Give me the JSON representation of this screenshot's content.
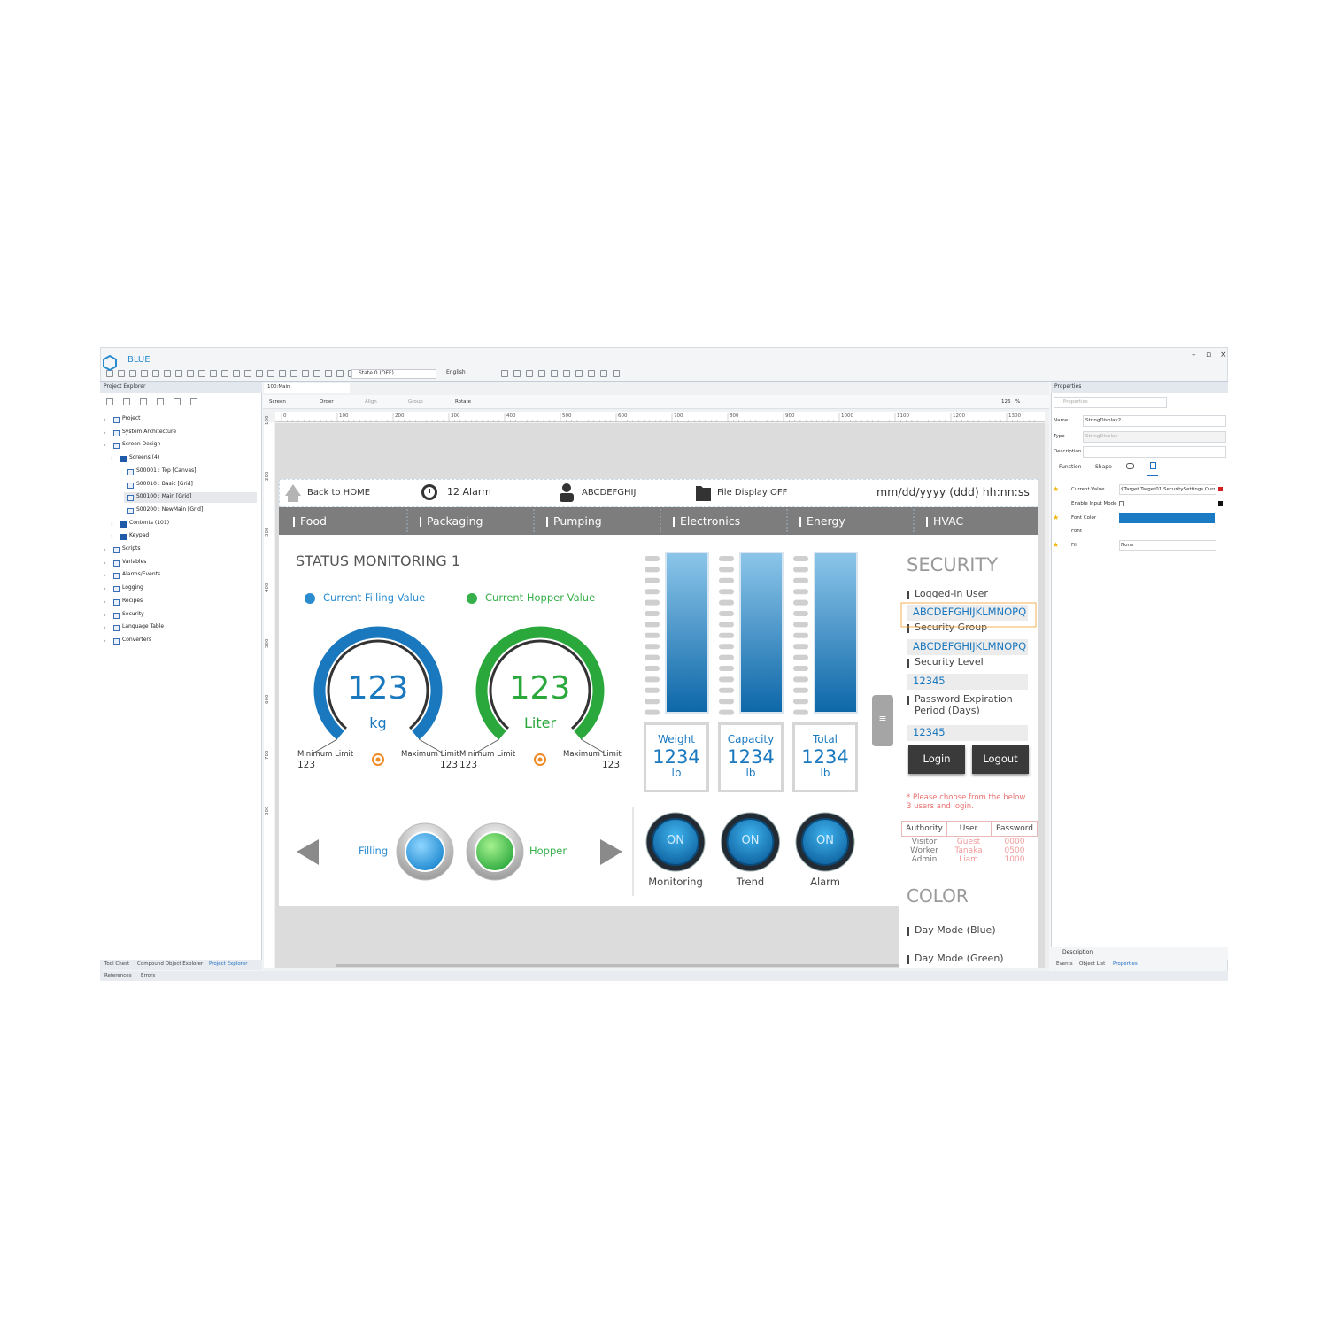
{
  "app": {
    "title": "BLUE",
    "state": "State 0 (OFF)",
    "language": "English"
  },
  "project_explorer": {
    "title": "Project Explorer",
    "tree": [
      "Project",
      "System Architecture",
      "Screen Design",
      "Screens (4)",
      "S00001 : Top [Canvas]",
      "S00010 : Basic [Grid]",
      "S00100 : Main [Grid]",
      "S00200 : NewMain [Grid]",
      "Contents (101)",
      "Keypad",
      "Scripts",
      "Variables",
      "Alarms/Events",
      "Logging",
      "Recipes",
      "Security",
      "Language Table",
      "Converters"
    ],
    "tabs": [
      "Tool Chest",
      "Compound Object Explorer",
      "Project Explorer"
    ],
    "bottom_tabs": [
      "References",
      "Errors"
    ]
  },
  "editor": {
    "tab": "100:Main",
    "toolbar": [
      "Screen",
      "Order",
      "Align",
      "Group",
      "Rotate"
    ],
    "zoom": "126",
    "zoom_unit": "%",
    "ruler_x": [
      0,
      100,
      200,
      300,
      400,
      500,
      600,
      700,
      800,
      900,
      1000,
      1100,
      1200,
      1300
    ],
    "ruler_y": [
      100,
      200,
      300,
      400,
      500,
      600,
      700,
      800
    ]
  },
  "hmi": {
    "header": {
      "home": "Back to HOME",
      "alarm": "12 Alarm",
      "user": "ABCDEFGHIJ",
      "file": "File Display OFF",
      "datetime": "mm/dd/yyyy (ddd) hh:nn:ss"
    },
    "nav": [
      "Food",
      "Packaging",
      "Pumping",
      "Electronics",
      "Energy",
      "HVAC"
    ],
    "status": {
      "title": "STATUS MONITORING 1",
      "legend": [
        {
          "name": "Current Filling Value",
          "color": "#2a8ccf"
        },
        {
          "name": "Current Hopper Value",
          "color": "#36b04a"
        }
      ],
      "gauges": [
        {
          "value": "123",
          "unit": "kg",
          "min_label": "Minimum Limit",
          "min": "123",
          "max_label": "Maximum Limit",
          "max": "123",
          "color": "#1a78bf"
        },
        {
          "value": "123",
          "unit": "Liter",
          "min_label": "Minimum Limit",
          "min": "123",
          "max_label": "Maximum Limit",
          "max": "123",
          "color": "#2aa83c"
        }
      ]
    },
    "meters": [
      {
        "label": "Weight",
        "value": "1234",
        "unit": "lb"
      },
      {
        "label": "Capacity",
        "value": "1234",
        "unit": "lb"
      },
      {
        "label": "Total",
        "value": "1234",
        "unit": "lb"
      }
    ],
    "controls": {
      "filling": "Filling",
      "hopper": "Hopper"
    },
    "buttons": [
      {
        "state": "ON",
        "label": "Monitoring"
      },
      {
        "state": "ON",
        "label": "Trend"
      },
      {
        "state": "ON",
        "label": "Alarm"
      }
    ],
    "security": {
      "title": "SECURITY",
      "fields": [
        {
          "label": "Logged-in User",
          "value": "ABCDEFGHIJKLMNOPQ"
        },
        {
          "label": "Security Group",
          "value": "ABCDEFGHIJKLMNOPQ"
        },
        {
          "label": "Security Level",
          "value": "12345"
        },
        {
          "label": "Password Expiration\nPeriod (Days)",
          "value": "12345"
        }
      ],
      "login": "Login",
      "logout": "Logout",
      "note": "* Please choose from the below 3 users and login.",
      "table": {
        "header": [
          "Authority",
          "User",
          "Password"
        ],
        "rows": [
          [
            "Visitor",
            "Guest",
            "0000"
          ],
          [
            "Worker",
            "Tanaka",
            "0500"
          ],
          [
            "Admin",
            "Liam",
            "1000"
          ]
        ]
      }
    },
    "color_section": {
      "title": "COLOR",
      "modes": [
        "Day Mode (Blue)",
        "Day Mode (Green)"
      ]
    }
  },
  "properties": {
    "title": "Properties",
    "search": "Properties",
    "fields": [
      {
        "label": "Name",
        "value": "StringDisplay2"
      },
      {
        "label": "Type",
        "value": "StringDisplay"
      },
      {
        "label": "Description"
      }
    ],
    "tabs": [
      "Function",
      "Shape"
    ],
    "rows": [
      {
        "label": "Current Value",
        "value": "$Target.Target01.SecuritySettings.Curren"
      },
      {
        "label": "Enable Input Mode"
      },
      {
        "label": "Font Color",
        "color": "#1a7bc4"
      },
      {
        "label": "Font"
      },
      {
        "label": "Fill",
        "value": "None"
      }
    ],
    "footer": "Description",
    "bottom_tabs": [
      "Events",
      "Object List",
      "Properties"
    ]
  }
}
